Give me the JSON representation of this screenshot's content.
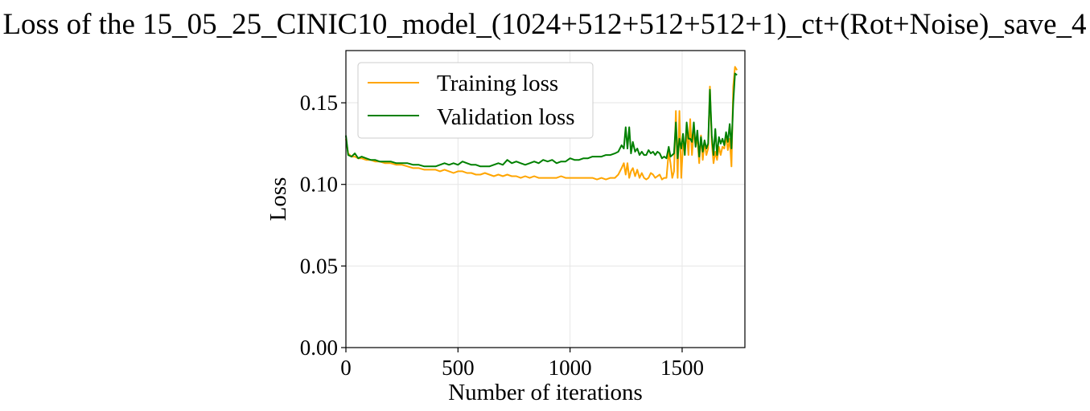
{
  "chart_data": {
    "type": "line",
    "title": "Loss of the 15_05_25_CINIC10_model_(1024+512+512+512+1)_ct+(Rot+Noise)_save_4",
    "xlabel": "Number of iterations",
    "ylabel": "Loss",
    "xlim": [
      0,
      1780
    ],
    "ylim": [
      0,
      0.182
    ],
    "xticks": [
      0,
      500,
      1000,
      1500
    ],
    "xtick_labels": [
      "0",
      "500",
      "1000",
      "1500"
    ],
    "yticks": [
      0.0,
      0.05,
      0.1,
      0.15
    ],
    "ytick_labels": [
      "0.00",
      "0.05",
      "0.10",
      "0.15"
    ],
    "grid": true,
    "legend_position": "upper-left",
    "series": [
      {
        "name": "Training loss",
        "color": "#ffa500",
        "points": [
          [
            0,
            0.128
          ],
          [
            10,
            0.119
          ],
          [
            25,
            0.117
          ],
          [
            40,
            0.117
          ],
          [
            55,
            0.116
          ],
          [
            70,
            0.116
          ],
          [
            90,
            0.115
          ],
          [
            110,
            0.115
          ],
          [
            130,
            0.114
          ],
          [
            150,
            0.114
          ],
          [
            175,
            0.113
          ],
          [
            200,
            0.113
          ],
          [
            225,
            0.112
          ],
          [
            250,
            0.112
          ],
          [
            275,
            0.111
          ],
          [
            300,
            0.11
          ],
          [
            325,
            0.11
          ],
          [
            350,
            0.109
          ],
          [
            375,
            0.109
          ],
          [
            400,
            0.109
          ],
          [
            420,
            0.108
          ],
          [
            440,
            0.109
          ],
          [
            460,
            0.108
          ],
          [
            480,
            0.107
          ],
          [
            500,
            0.108
          ],
          [
            520,
            0.108
          ],
          [
            540,
            0.107
          ],
          [
            560,
            0.107
          ],
          [
            580,
            0.106
          ],
          [
            600,
            0.106
          ],
          [
            620,
            0.107
          ],
          [
            640,
            0.106
          ],
          [
            660,
            0.105
          ],
          [
            680,
            0.106
          ],
          [
            700,
            0.105
          ],
          [
            720,
            0.106
          ],
          [
            740,
            0.105
          ],
          [
            760,
            0.105
          ],
          [
            780,
            0.104
          ],
          [
            800,
            0.105
          ],
          [
            820,
            0.104
          ],
          [
            840,
            0.105
          ],
          [
            860,
            0.104
          ],
          [
            880,
            0.104
          ],
          [
            900,
            0.104
          ],
          [
            920,
            0.104
          ],
          [
            940,
            0.104
          ],
          [
            960,
            0.105
          ],
          [
            980,
            0.104
          ],
          [
            1000,
            0.104
          ],
          [
            1020,
            0.104
          ],
          [
            1040,
            0.104
          ],
          [
            1060,
            0.104
          ],
          [
            1080,
            0.104
          ],
          [
            1100,
            0.104
          ],
          [
            1120,
            0.103
          ],
          [
            1140,
            0.104
          ],
          [
            1160,
            0.103
          ],
          [
            1180,
            0.104
          ],
          [
            1200,
            0.104
          ],
          [
            1215,
            0.106
          ],
          [
            1230,
            0.11
          ],
          [
            1240,
            0.113
          ],
          [
            1248,
            0.106
          ],
          [
            1256,
            0.113
          ],
          [
            1264,
            0.104
          ],
          [
            1272,
            0.108
          ],
          [
            1280,
            0.11
          ],
          [
            1290,
            0.105
          ],
          [
            1300,
            0.109
          ],
          [
            1310,
            0.104
          ],
          [
            1320,
            0.107
          ],
          [
            1330,
            0.104
          ],
          [
            1340,
            0.103
          ],
          [
            1350,
            0.104
          ],
          [
            1360,
            0.107
          ],
          [
            1370,
            0.106
          ],
          [
            1380,
            0.104
          ],
          [
            1390,
            0.105
          ],
          [
            1400,
            0.106
          ],
          [
            1410,
            0.103
          ],
          [
            1420,
            0.104
          ],
          [
            1430,
            0.104
          ],
          [
            1440,
            0.12
          ],
          [
            1448,
            0.113
          ],
          [
            1456,
            0.104
          ],
          [
            1464,
            0.108
          ],
          [
            1472,
            0.145
          ],
          [
            1480,
            0.104
          ],
          [
            1488,
            0.145
          ],
          [
            1496,
            0.104
          ],
          [
            1504,
            0.125
          ],
          [
            1512,
            0.12
          ],
          [
            1520,
            0.133
          ],
          [
            1528,
            0.118
          ],
          [
            1536,
            0.14
          ],
          [
            1544,
            0.118
          ],
          [
            1552,
            0.133
          ],
          [
            1560,
            0.124
          ],
          [
            1568,
            0.128
          ],
          [
            1576,
            0.113
          ],
          [
            1584,
            0.13
          ],
          [
            1592,
            0.115
          ],
          [
            1600,
            0.126
          ],
          [
            1608,
            0.118
          ],
          [
            1616,
            0.122
          ],
          [
            1624,
            0.16
          ],
          [
            1632,
            0.126
          ],
          [
            1640,
            0.113
          ],
          [
            1648,
            0.12
          ],
          [
            1656,
            0.115
          ],
          [
            1664,
            0.123
          ],
          [
            1672,
            0.118
          ],
          [
            1680,
            0.123
          ],
          [
            1688,
            0.122
          ],
          [
            1696,
            0.13
          ],
          [
            1704,
            0.121
          ],
          [
            1712,
            0.128
          ],
          [
            1720,
            0.111
          ],
          [
            1728,
            0.16
          ],
          [
            1736,
            0.172
          ],
          [
            1745,
            0.17
          ]
        ]
      },
      {
        "name": "Validation loss",
        "color": "#008000",
        "points": [
          [
            0,
            0.13
          ],
          [
            10,
            0.118
          ],
          [
            25,
            0.117
          ],
          [
            40,
            0.119
          ],
          [
            55,
            0.116
          ],
          [
            70,
            0.117
          ],
          [
            90,
            0.116
          ],
          [
            110,
            0.115
          ],
          [
            130,
            0.115
          ],
          [
            150,
            0.114
          ],
          [
            175,
            0.114
          ],
          [
            200,
            0.114
          ],
          [
            225,
            0.113
          ],
          [
            250,
            0.113
          ],
          [
            275,
            0.113
          ],
          [
            300,
            0.112
          ],
          [
            325,
            0.112
          ],
          [
            350,
            0.111
          ],
          [
            375,
            0.111
          ],
          [
            400,
            0.111
          ],
          [
            420,
            0.112
          ],
          [
            440,
            0.113
          ],
          [
            460,
            0.112
          ],
          [
            480,
            0.113
          ],
          [
            500,
            0.112
          ],
          [
            520,
            0.114
          ],
          [
            540,
            0.113
          ],
          [
            560,
            0.112
          ],
          [
            580,
            0.112
          ],
          [
            600,
            0.111
          ],
          [
            620,
            0.111
          ],
          [
            640,
            0.111
          ],
          [
            660,
            0.112
          ],
          [
            680,
            0.113
          ],
          [
            700,
            0.112
          ],
          [
            720,
            0.115
          ],
          [
            740,
            0.113
          ],
          [
            760,
            0.114
          ],
          [
            780,
            0.113
          ],
          [
            800,
            0.112
          ],
          [
            820,
            0.113
          ],
          [
            840,
            0.114
          ],
          [
            860,
            0.113
          ],
          [
            880,
            0.115
          ],
          [
            900,
            0.114
          ],
          [
            920,
            0.115
          ],
          [
            940,
            0.113
          ],
          [
            960,
            0.114
          ],
          [
            980,
            0.114
          ],
          [
            1000,
            0.116
          ],
          [
            1020,
            0.115
          ],
          [
            1040,
            0.115
          ],
          [
            1060,
            0.116
          ],
          [
            1080,
            0.116
          ],
          [
            1100,
            0.117
          ],
          [
            1120,
            0.117
          ],
          [
            1140,
            0.117
          ],
          [
            1160,
            0.118
          ],
          [
            1180,
            0.118
          ],
          [
            1200,
            0.119
          ],
          [
            1215,
            0.12
          ],
          [
            1230,
            0.124
          ],
          [
            1240,
            0.122
          ],
          [
            1248,
            0.135
          ],
          [
            1256,
            0.122
          ],
          [
            1264,
            0.135
          ],
          [
            1272,
            0.119
          ],
          [
            1280,
            0.126
          ],
          [
            1290,
            0.12
          ],
          [
            1300,
            0.122
          ],
          [
            1310,
            0.118
          ],
          [
            1320,
            0.12
          ],
          [
            1330,
            0.118
          ],
          [
            1340,
            0.118
          ],
          [
            1350,
            0.121
          ],
          [
            1360,
            0.119
          ],
          [
            1370,
            0.12
          ],
          [
            1380,
            0.118
          ],
          [
            1390,
            0.12
          ],
          [
            1400,
            0.119
          ],
          [
            1410,
            0.116
          ],
          [
            1420,
            0.117
          ],
          [
            1430,
            0.116
          ],
          [
            1440,
            0.123
          ],
          [
            1448,
            0.117
          ],
          [
            1456,
            0.118
          ],
          [
            1464,
            0.119
          ],
          [
            1472,
            0.138
          ],
          [
            1480,
            0.116
          ],
          [
            1488,
            0.128
          ],
          [
            1496,
            0.122
          ],
          [
            1504,
            0.131
          ],
          [
            1512,
            0.118
          ],
          [
            1520,
            0.138
          ],
          [
            1528,
            0.128
          ],
          [
            1536,
            0.128
          ],
          [
            1544,
            0.126
          ],
          [
            1552,
            0.138
          ],
          [
            1560,
            0.123
          ],
          [
            1568,
            0.133
          ],
          [
            1576,
            0.117
          ],
          [
            1584,
            0.129
          ],
          [
            1592,
            0.12
          ],
          [
            1600,
            0.127
          ],
          [
            1608,
            0.122
          ],
          [
            1616,
            0.125
          ],
          [
            1624,
            0.158
          ],
          [
            1632,
            0.13
          ],
          [
            1640,
            0.118
          ],
          [
            1648,
            0.134
          ],
          [
            1656,
            0.118
          ],
          [
            1664,
            0.129
          ],
          [
            1672,
            0.125
          ],
          [
            1680,
            0.128
          ],
          [
            1688,
            0.124
          ],
          [
            1696,
            0.132
          ],
          [
            1704,
            0.126
          ],
          [
            1712,
            0.137
          ],
          [
            1720,
            0.122
          ],
          [
            1728,
            0.15
          ],
          [
            1736,
            0.168
          ],
          [
            1745,
            0.167
          ]
        ]
      }
    ]
  }
}
